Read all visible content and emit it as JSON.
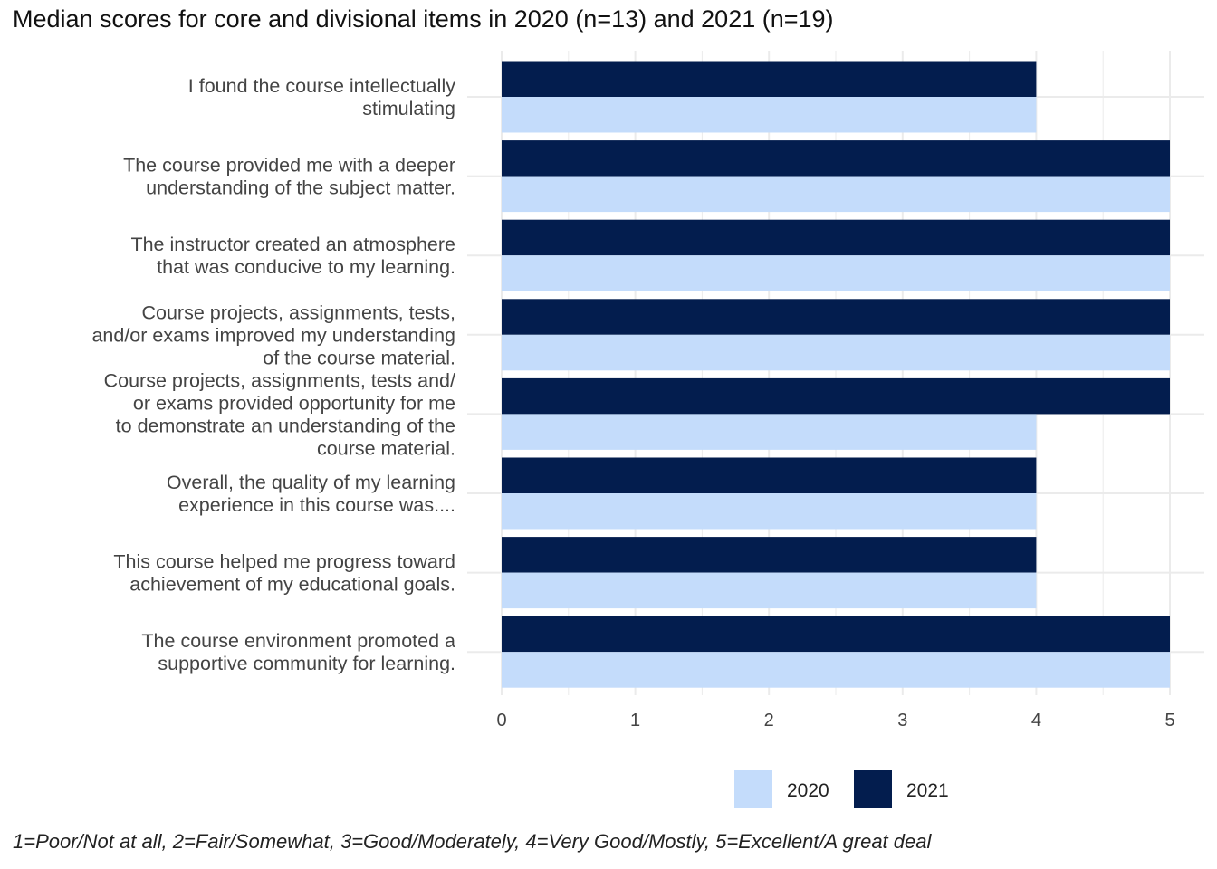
{
  "title": "Median scores for core and divisional items in 2020 (n=13) and 2021 (n=19)",
  "caption": "1=Poor/Not at all, 2=Fair/Somewhat, 3=Good/Moderately, 4=Very Good/Mostly, 5=Excellent/A great deal",
  "colors": {
    "2020": "#c4dcfb",
    "2021": "#031d4e",
    "grid": "#ebebeb"
  },
  "chart_data": {
    "type": "bar",
    "orientation": "horizontal",
    "title": "Median scores for core and divisional items in 2020 (n=13) and 2021 (n=19)",
    "xlabel": "",
    "ylabel": "",
    "xlim": [
      0,
      5
    ],
    "x_ticks": [
      0,
      1,
      2,
      3,
      4,
      5
    ],
    "grid": true,
    "legend_position": "bottom",
    "categories": [
      [
        "I found the course intellectually",
        "stimulating"
      ],
      [
        "The course provided me with a deeper",
        "understanding of the subject matter."
      ],
      [
        "The instructor created an atmosphere",
        "that was conducive to my learning."
      ],
      [
        "Course projects, assignments, tests,",
        "and/or exams improved my understanding",
        "of the course material."
      ],
      [
        "Course projects, assignments, tests and/",
        "or exams provided opportunity for me",
        "to demonstrate an understanding of the",
        "course material."
      ],
      [
        "Overall, the quality of my learning",
        "experience in this course was...."
      ],
      [
        "This course helped me progress toward",
        "achievement of my educational goals."
      ],
      [
        "The course environment promoted a",
        "supportive community for learning."
      ]
    ],
    "series": [
      {
        "name": "2020",
        "color": "#c4dcfb",
        "values": [
          4,
          5,
          5,
          5,
          4,
          4,
          4,
          5
        ]
      },
      {
        "name": "2021",
        "color": "#031d4e",
        "values": [
          4,
          5,
          5,
          5,
          5,
          4,
          4,
          5
        ]
      }
    ]
  }
}
